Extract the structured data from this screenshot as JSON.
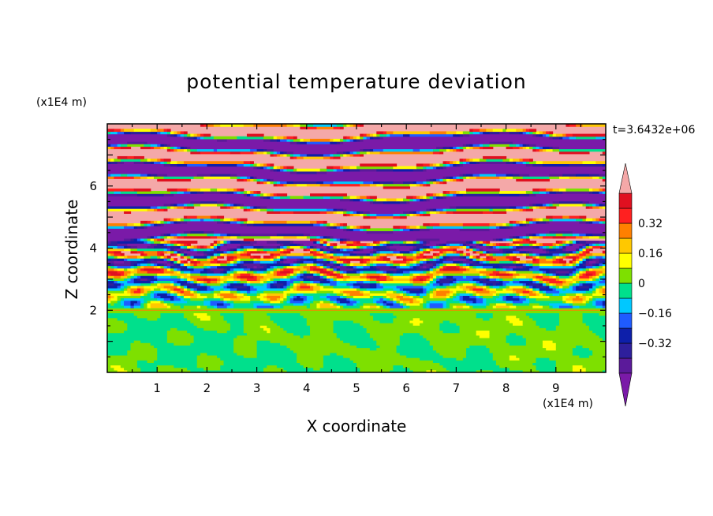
{
  "chart_data": {
    "type": "heatmap",
    "title": "potential temperature deviation",
    "xlabel": "X coordinate",
    "ylabel": "Z coordinate",
    "x_unit_label": "(x1E4 m)",
    "y_unit_label": "(x1E4 m)",
    "time_label": "t=3.6432e+06",
    "xlim": [
      0,
      10
    ],
    "ylim": [
      0,
      8
    ],
    "x_ticks": [
      "1",
      "2",
      "3",
      "4",
      "5",
      "6",
      "7",
      "8",
      "9"
    ],
    "y_ticks": [
      "2",
      "4",
      "6"
    ],
    "colorbar": {
      "levels": [
        -0.48,
        -0.4,
        -0.32,
        -0.24,
        -0.16,
        -0.08,
        0,
        0.08,
        0.16,
        0.24,
        0.32,
        0.4,
        0.48
      ],
      "tick_labels": [
        "0.32",
        "0.16",
        "0",
        "−0.16",
        "−0.32"
      ],
      "tick_values": [
        0.32,
        0.16,
        0,
        -0.16,
        -0.32
      ],
      "colors": [
        "#5b1a9a",
        "#2e1f9c",
        "#0d1faa",
        "#1f5bff",
        "#00c8ff",
        "#00e08c",
        "#7ee000",
        "#ffff00",
        "#ffc800",
        "#ff8000",
        "#ff2020",
        "#e01020"
      ],
      "under_color": "#7a1aa8",
      "over_color": "#f4a8a8"
    },
    "regions": [
      {
        "z_range": [
          0,
          2.0
        ],
        "description": "lower layer",
        "values": [
          -0.04,
          0.04
        ]
      },
      {
        "z_range": [
          2.0,
          4.2
        ],
        "description": "transition",
        "values": [
          -0.48,
          0.48
        ]
      },
      {
        "z_range": [
          4.2,
          8.0
        ],
        "description": "upper banded",
        "values": [
          -0.48,
          0.48
        ]
      }
    ]
  }
}
